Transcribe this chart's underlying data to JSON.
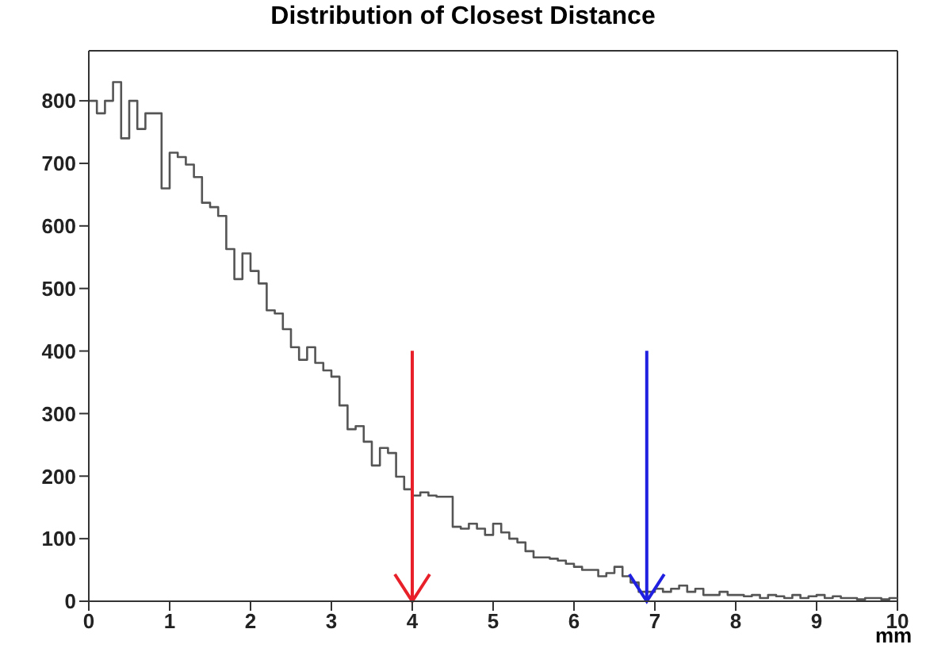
{
  "chart_data": {
    "type": "histogram",
    "title": "Distribution of Closest Distance",
    "xlabel": "mm",
    "bins": [
      0,
      0.1,
      0.2,
      0.3,
      0.4,
      0.5,
      0.6,
      0.7,
      0.8,
      0.9,
      1,
      1.1,
      1.2,
      1.3,
      1.4,
      1.5,
      1.6,
      1.7,
      1.8,
      1.9,
      2,
      2.1,
      2.2,
      2.3,
      2.4,
      2.5,
      2.6,
      2.7,
      2.8,
      2.9,
      3,
      3.1,
      3.2,
      3.3,
      3.4,
      3.5,
      3.6,
      3.7,
      3.8,
      3.9,
      4,
      4.1,
      4.2,
      4.3,
      4.4,
      4.5,
      4.6,
      4.7,
      4.8,
      4.9,
      5,
      5.1,
      5.2,
      5.3,
      5.4,
      5.5,
      5.6,
      5.7,
      5.8,
      5.9,
      6,
      6.1,
      6.2,
      6.3,
      6.4,
      6.5,
      6.6,
      6.7,
      6.8,
      6.9,
      7,
      7.1,
      7.2,
      7.3,
      7.4,
      7.5,
      7.6,
      7.7,
      7.8,
      7.9,
      8,
      8.1,
      8.2,
      8.3,
      8.4,
      8.5,
      8.6,
      8.7,
      8.8,
      8.9,
      9,
      9.1,
      9.2,
      9.3,
      9.4,
      9.5,
      9.6,
      9.7,
      9.8,
      9.9,
      10
    ],
    "values": [
      800,
      780,
      800,
      830,
      740,
      800,
      755,
      780,
      780,
      660,
      717,
      710,
      698,
      678,
      637,
      630,
      616,
      563,
      515,
      556,
      528,
      508,
      465,
      460,
      435,
      406,
      386,
      406,
      381,
      369,
      359,
      313,
      275,
      280,
      255,
      217,
      245,
      237,
      199,
      179,
      169,
      174,
      169,
      167,
      167,
      119,
      116,
      124,
      116,
      106,
      124,
      110,
      100,
      94,
      80,
      70,
      70,
      68,
      65,
      60,
      55,
      50,
      50,
      40,
      45,
      55,
      40,
      30,
      15,
      15,
      20,
      15,
      20,
      25,
      15,
      20,
      10,
      10,
      15,
      10,
      10,
      8,
      10,
      5,
      10,
      8,
      5,
      10,
      5,
      8,
      10,
      5,
      8,
      5,
      5,
      3,
      5,
      5,
      3,
      5
    ],
    "color": "#555555",
    "xlim": [
      0,
      10
    ],
    "xticks": [
      0,
      1,
      2,
      3,
      4,
      5,
      6,
      7,
      8,
      9,
      10
    ],
    "ylim": [
      0,
      880
    ],
    "yticks": [
      0,
      100,
      200,
      300,
      400,
      500,
      600,
      700,
      800
    ],
    "ref_lines": [
      {
        "axis": "x",
        "value": 4,
        "color": "#e8202a"
      },
      {
        "axis": "x",
        "value": 6.9,
        "color": "#2020e0"
      }
    ],
    "grid": false,
    "legend": false
  }
}
